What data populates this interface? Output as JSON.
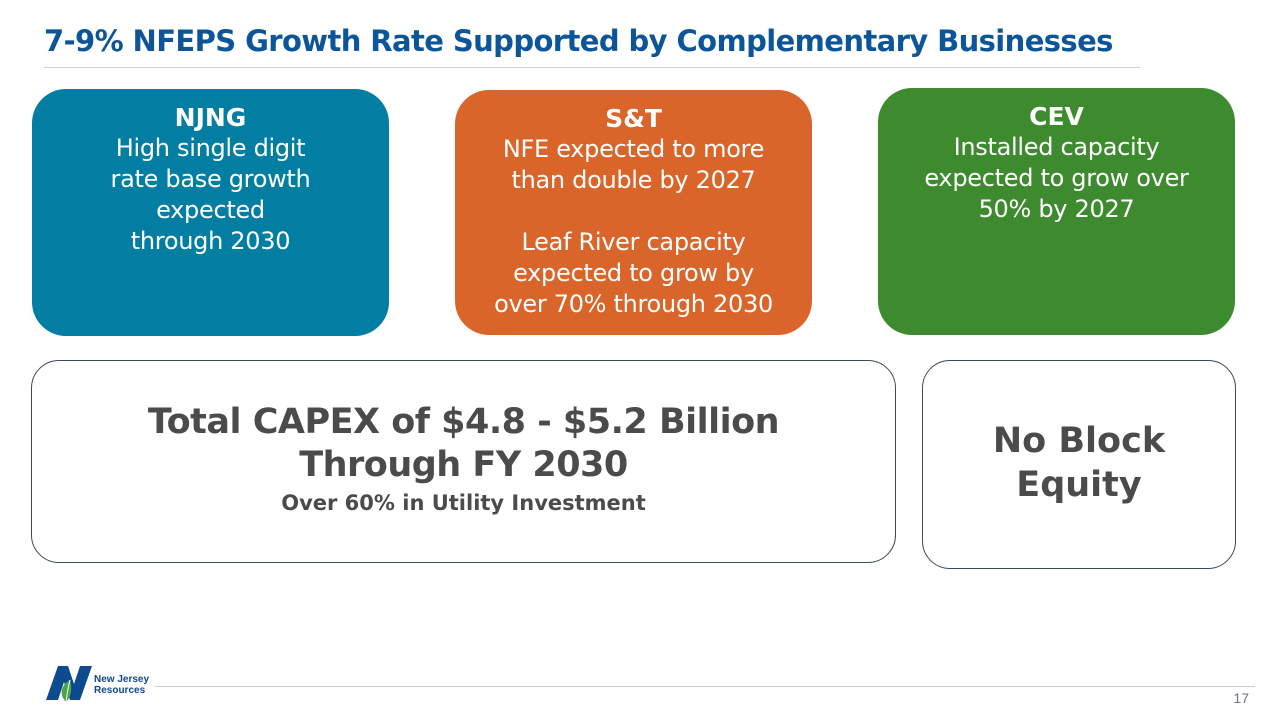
{
  "slide": {
    "title": "7-9% NFEPS Growth Rate Supported by Complementary Businesses",
    "page_number": "17"
  },
  "cards": {
    "njng": {
      "heading": "NJNG",
      "lines": [
        "High single digit",
        "rate base growth",
        "expected",
        "through 2030"
      ],
      "color": "#027ea2"
    },
    "st": {
      "heading": "S&T",
      "lines": [
        "NFE expected to more",
        "than double by 2027",
        "",
        "Leaf River capacity",
        "expected to grow by",
        "over 70% through 2030"
      ],
      "color": "#d9652a"
    },
    "cev": {
      "heading": "CEV",
      "lines": [
        "Installed capacity",
        "expected to grow over",
        "50% by 2027"
      ],
      "color": "#3e8a2f"
    }
  },
  "capex": {
    "main_lines": [
      "Total CAPEX of $4.8 - $5.2 Billion",
      "Through FY 2030"
    ],
    "sub": "Over 60% in Utility Investment"
  },
  "equity": {
    "lines": [
      "No Block",
      "Equity"
    ]
  },
  "logo": {
    "text_lines": [
      "New Jersey",
      "Resources"
    ],
    "colors": {
      "primary": "#0d4a8f",
      "leaf": "#4aa54a"
    }
  }
}
